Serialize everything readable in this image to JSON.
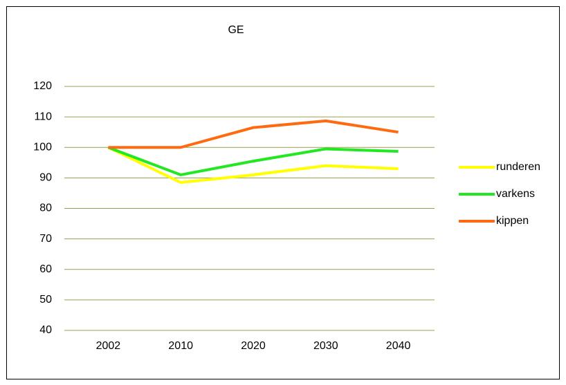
{
  "chart_data": {
    "type": "line",
    "title": "GE",
    "categories": [
      "2002",
      "2010",
      "2020",
      "2030",
      "2040"
    ],
    "series": [
      {
        "name": "runderen",
        "color": "#ffff00",
        "values": [
          100,
          88.5,
          91,
          94,
          93
        ]
      },
      {
        "name": "varkens",
        "color": "#22e822",
        "values": [
          100,
          91,
          95.5,
          99.5,
          98.7
        ]
      },
      {
        "name": "kippen",
        "color": "#ff6a10",
        "values": [
          100,
          100,
          106.5,
          108.7,
          105
        ]
      }
    ],
    "ylim": [
      40,
      120
    ],
    "yticks": [
      40,
      50,
      60,
      70,
      80,
      90,
      100,
      110,
      120
    ],
    "grid": true,
    "legend": "right"
  }
}
